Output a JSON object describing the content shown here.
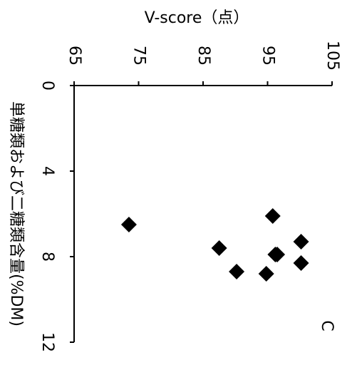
{
  "chart_data": {
    "type": "scatter",
    "panel_label": "C",
    "value_axis": {
      "label": "V-score（点）",
      "range": [
        65,
        105
      ],
      "ticks": [
        65,
        75,
        85,
        95,
        105
      ]
    },
    "category_axis": {
      "label": "単糖類および二糖類含量(%DM)",
      "range": [
        0,
        12
      ],
      "ticks": [
        0,
        4,
        8,
        12
      ]
    },
    "points": [
      {
        "x": 6.5,
        "y": 73.5
      },
      {
        "x": 6.1,
        "y": 95.8
      },
      {
        "x": 7.3,
        "y": 100.2
      },
      {
        "x": 7.9,
        "y": 96.5
      },
      {
        "x": 7.9,
        "y": 96.2
      },
      {
        "x": 7.6,
        "y": 87.5
      },
      {
        "x": 8.3,
        "y": 100.2
      },
      {
        "x": 8.7,
        "y": 90.2
      },
      {
        "x": 8.8,
        "y": 94.8
      }
    ],
    "marker": {
      "shape": "diamond",
      "color": "#000000"
    },
    "grid": false,
    "legend": "none"
  }
}
